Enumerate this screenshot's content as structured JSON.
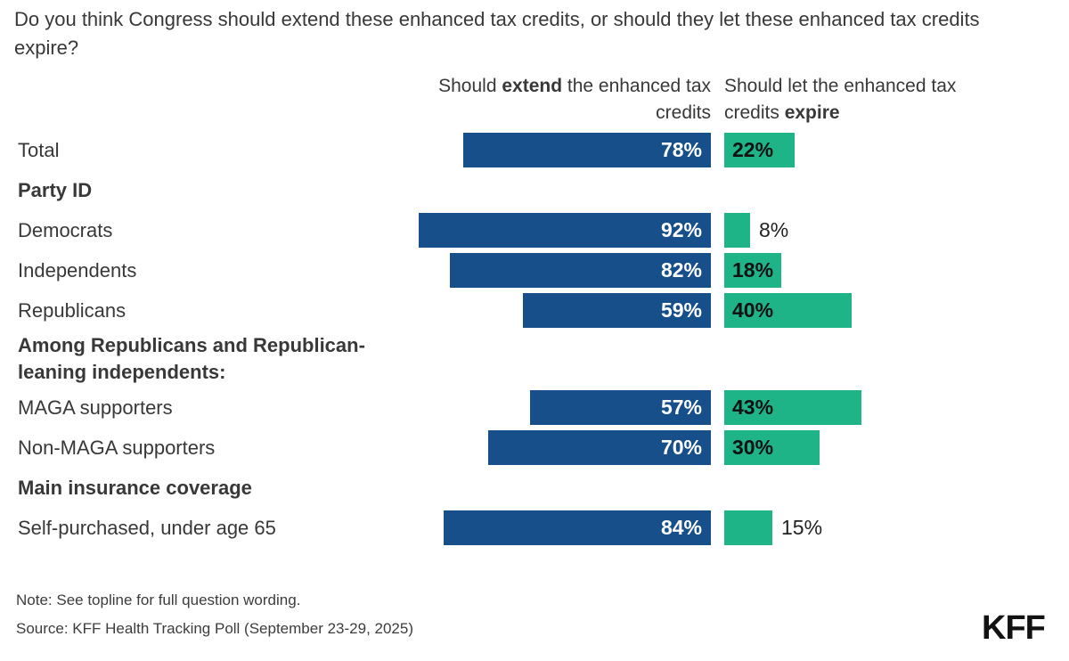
{
  "title": "Do you think Congress should extend these enhanced tax credits, or should they let these enhanced tax credits expire?",
  "column_headers": {
    "extend": {
      "line1": {
        "pre": "Should ",
        "bold": "extend",
        "post": " the enhanced tax"
      },
      "line2": {
        "pre": "credits",
        "bold": "",
        "post": ""
      }
    },
    "expire": {
      "line1": {
        "pre": "Should let the enhanced tax",
        "bold": "",
        "post": ""
      },
      "line2": {
        "pre": "credits ",
        "bold": "expire",
        "post": ""
      }
    }
  },
  "chart_data": {
    "type": "bar",
    "subtype": "diverging-horizontal",
    "unit": "%",
    "axis_max": 100,
    "series": [
      {
        "name": "Should extend the enhanced tax credits",
        "color": "#164f8a"
      },
      {
        "name": "Should let the enhanced tax credits expire",
        "color": "#1eb487"
      }
    ],
    "rows": [
      {
        "kind": "bar",
        "label": "Total",
        "extend": 78,
        "expire": 22
      },
      {
        "kind": "section",
        "label": "Party ID"
      },
      {
        "kind": "bar",
        "label": "Democrats",
        "extend": 92,
        "expire": 8
      },
      {
        "kind": "bar",
        "label": "Independents",
        "extend": 82,
        "expire": 18
      },
      {
        "kind": "bar",
        "label": "Republicans",
        "extend": 59,
        "expire": 40
      },
      {
        "kind": "section",
        "label": "Among Republicans and Republican-leaning independents:",
        "two_line": true
      },
      {
        "kind": "bar",
        "label": "MAGA supporters",
        "extend": 57,
        "expire": 43
      },
      {
        "kind": "bar",
        "label": "Non-MAGA supporters",
        "extend": 70,
        "expire": 30
      },
      {
        "kind": "section",
        "label": "Main insurance coverage"
      },
      {
        "kind": "bar",
        "label": "Self-purchased, under age 65",
        "extend": 84,
        "expire": 15
      }
    ],
    "value_label_format": "{value}%"
  },
  "note": "Note: See topline for full question wording.",
  "source": "Source: KFF Health Tracking Poll (September 23-29, 2025)",
  "logo": "KFF",
  "colors": {
    "extend_bar": "#164f8a",
    "expire_bar": "#1eb487",
    "text": "#383838",
    "value_inside_extend": "#ffffff",
    "value_inside_expire": "#111111",
    "background": "#ffffff"
  }
}
